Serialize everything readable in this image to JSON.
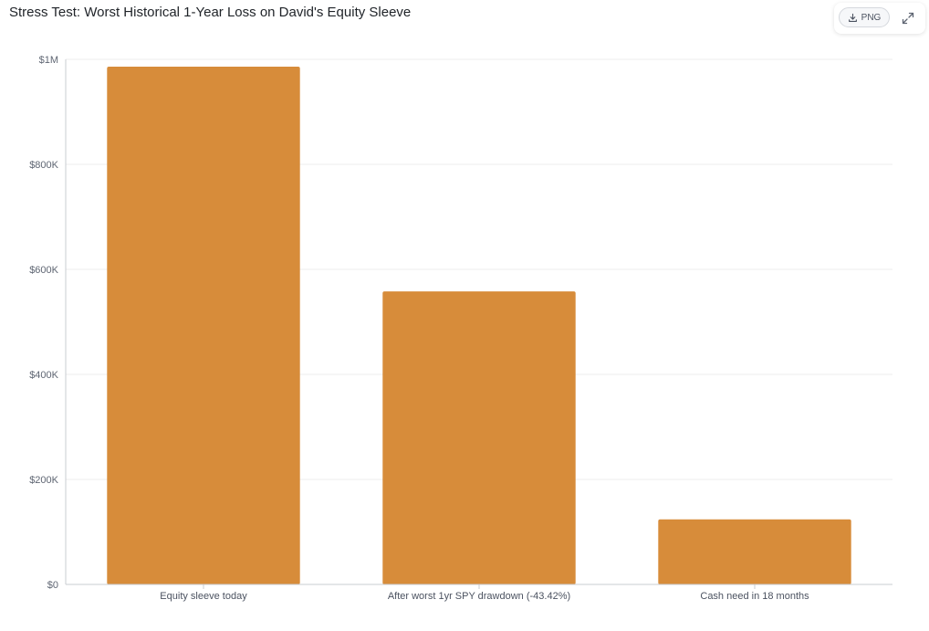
{
  "title": "Stress Test: Worst Historical 1-Year Loss on David's Equity Sleeve",
  "toolbar": {
    "png_label": "PNG",
    "download_icon": "download-icon",
    "expand_icon": "expand-icon"
  },
  "colors": {
    "bar": "#d78c3a",
    "grid": "#ececec",
    "axis": "#c8ccd2"
  },
  "chart_data": {
    "type": "bar",
    "categories": [
      "Equity sleeve today",
      "After worst 1yr SPY drawdown (-43.42%)",
      "Cash need in 18 months"
    ],
    "values": [
      986000,
      558000,
      124000
    ],
    "ylim": [
      0,
      1000000
    ],
    "yticks": [
      {
        "value": 0,
        "label": "$0"
      },
      {
        "value": 200000,
        "label": "$200K"
      },
      {
        "value": 400000,
        "label": "$400K"
      },
      {
        "value": 600000,
        "label": "$600K"
      },
      {
        "value": 800000,
        "label": "$800K"
      },
      {
        "value": 1000000,
        "label": "$1M"
      }
    ],
    "grid": true,
    "legend": "none"
  }
}
